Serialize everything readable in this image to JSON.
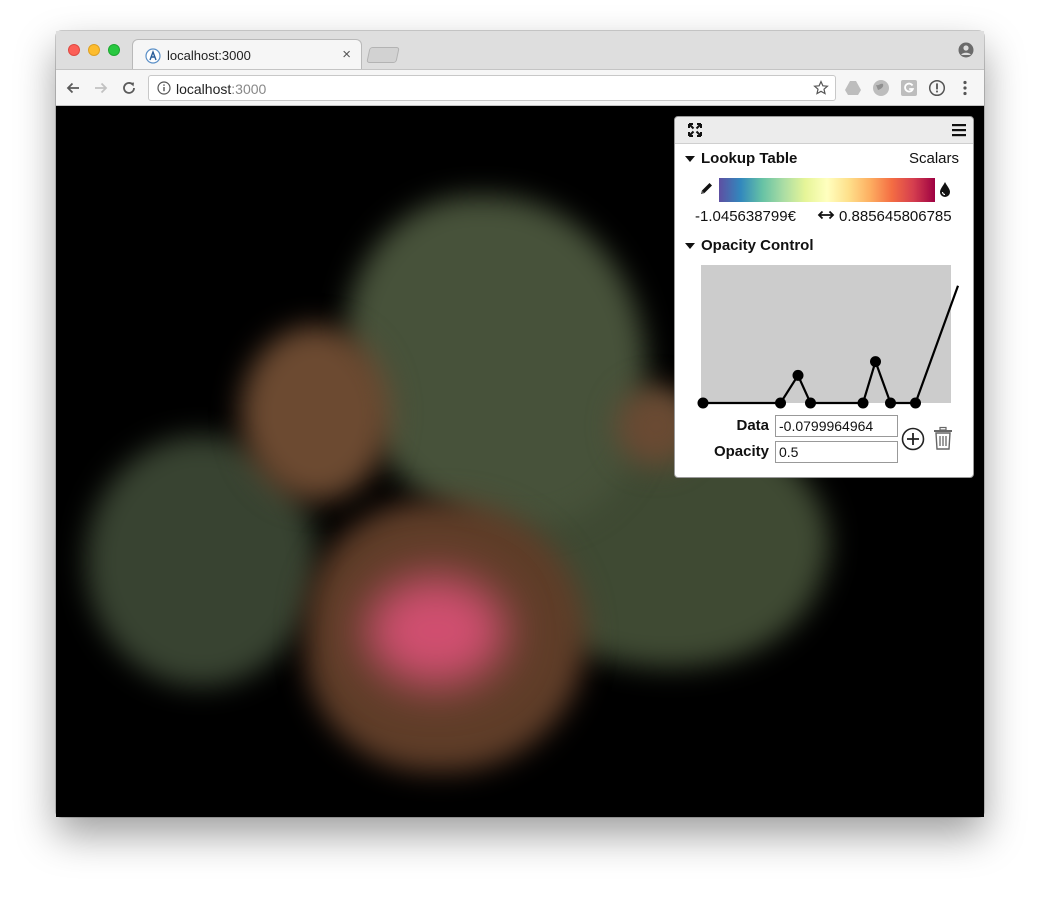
{
  "browser": {
    "tab_title": "localhost:3000",
    "tab_close": "×",
    "url_host": "localhost",
    "url_port": ":3000"
  },
  "panel": {
    "lookup_table_title": "Lookup Table",
    "array_name": "Scalars",
    "colormap_colors": [
      "#5e4fa2",
      "#3288bd",
      "#66c2a5",
      "#abdda4",
      "#e6f598",
      "#ffffbf",
      "#fee08b",
      "#fdae61",
      "#f46d43",
      "#d53e4f",
      "#9e0142"
    ],
    "range_min": "-1.045638799€",
    "range_max": "0.885645806785",
    "opacity_control_title": "Opacity Control",
    "data_label": "Data",
    "data_value": "-0.0799964964",
    "opacity_label": "Opacity",
    "opacity_value": "0.5"
  },
  "opacity_function": {
    "points": [
      {
        "data": 0.0,
        "opacity": 0.0
      },
      {
        "data": 0.31,
        "opacity": 0.0
      },
      {
        "data": 0.38,
        "opacity": 0.2
      },
      {
        "data": 0.43,
        "opacity": 0.0
      },
      {
        "data": 0.64,
        "opacity": 0.0
      },
      {
        "data": 0.69,
        "opacity": 0.3
      },
      {
        "data": 0.75,
        "opacity": 0.0
      },
      {
        "data": 0.85,
        "opacity": 0.0
      },
      {
        "data": 1.02,
        "opacity": 0.85
      }
    ]
  },
  "icons": {
    "expand": "expand-icon",
    "menu": "hamburger-menu-icon",
    "edit": "pencil-icon",
    "drop": "drop-icon",
    "range": "double-arrow-icon",
    "add": "plus-circle-icon",
    "delete": "trash-icon"
  }
}
